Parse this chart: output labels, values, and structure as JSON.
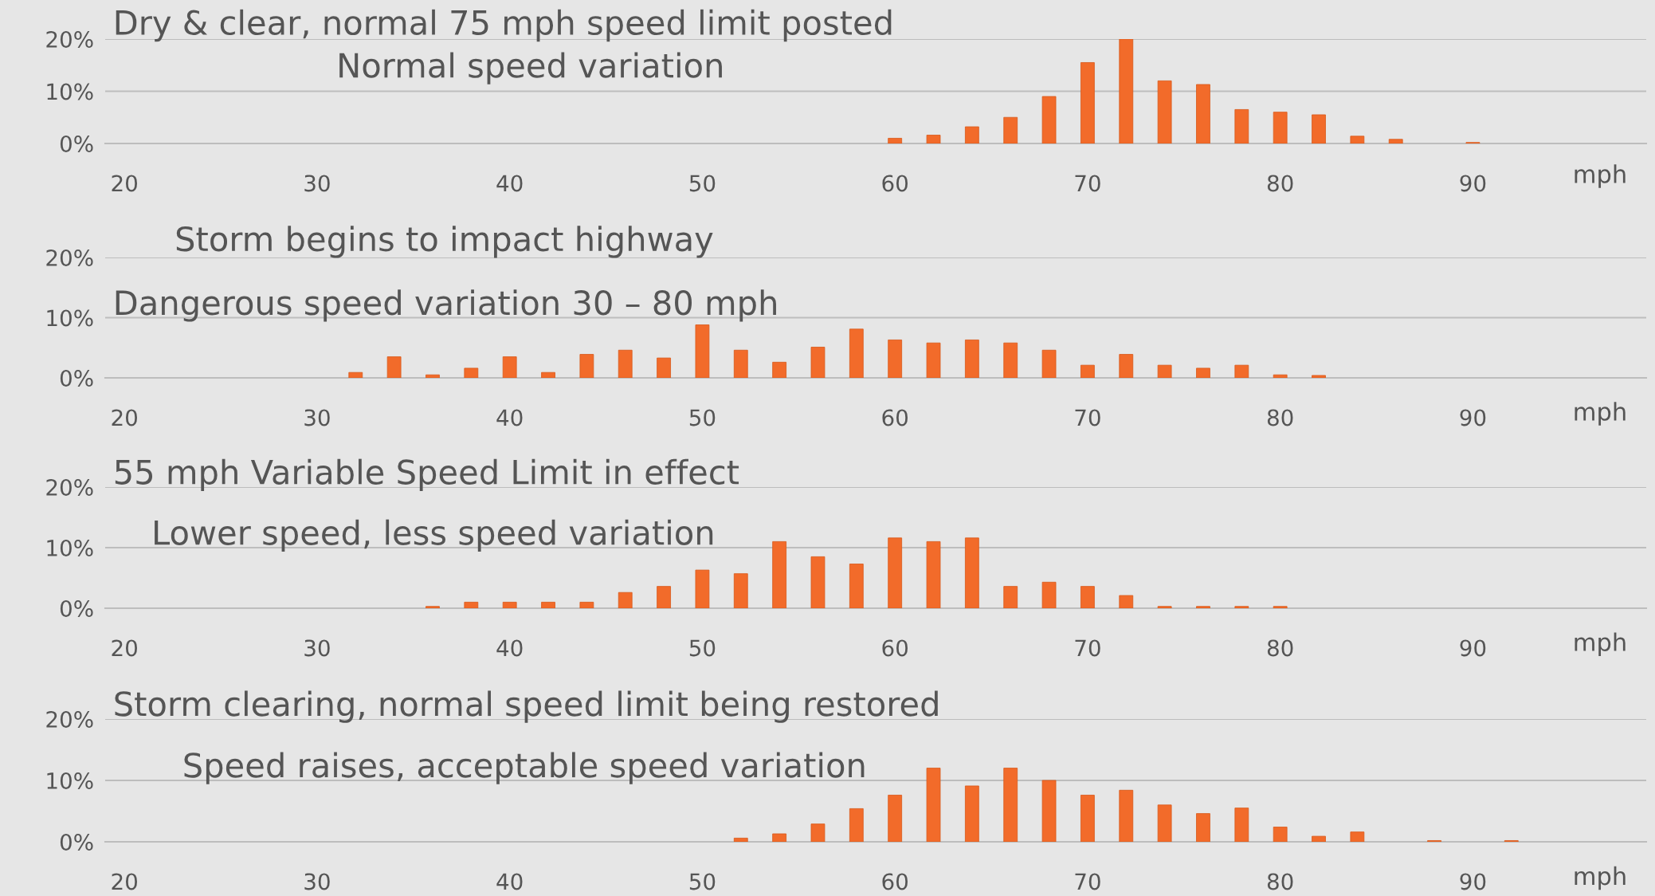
{
  "chart_data": [
    {
      "type": "bar",
      "title": "Dry & clear, normal 75 mph speed limit posted",
      "subtitle": "Normal speed variation",
      "xlabel": "mph",
      "x": [
        60,
        62,
        64,
        66,
        68,
        70,
        72,
        74,
        76,
        78,
        80,
        82,
        84,
        86,
        90
      ],
      "values": [
        1,
        1.6,
        3.2,
        5,
        9,
        15.5,
        20,
        12,
        11.3,
        6.5,
        6,
        5.5,
        1.4,
        0.8,
        0.2
      ],
      "color": "#f26b2a",
      "xlim": [
        19,
        99
      ],
      "xticks": [
        20,
        30,
        40,
        50,
        60,
        70,
        80,
        90
      ],
      "ylim": [
        0,
        20
      ],
      "yticks": [
        {
          "value": 0,
          "label": "0%"
        },
        {
          "value": 10,
          "label": "10%"
        },
        {
          "value": 20,
          "label": "20%"
        }
      ],
      "grid": "y"
    },
    {
      "type": "bar",
      "title": "Storm begins to impact highway",
      "subtitle": "Dangerous speed variation 30 – 80 mph",
      "xlabel": "mph",
      "x": [
        32,
        34,
        36,
        38,
        40,
        42,
        44,
        46,
        48,
        50,
        52,
        54,
        56,
        58,
        60,
        62,
        64,
        66,
        68,
        70,
        72,
        74,
        76,
        78,
        80,
        82
      ],
      "values": [
        0.9,
        3.5,
        0.5,
        1.6,
        3.5,
        0.9,
        3.9,
        4.6,
        3.3,
        8.8,
        4.6,
        2.6,
        5.1,
        8.1,
        6.3,
        5.8,
        6.3,
        5.8,
        4.6,
        2.1,
        3.9,
        2.1,
        1.6,
        2.1,
        0.5,
        0.4
      ],
      "color": "#f26b2a",
      "xlim": [
        19,
        99
      ],
      "xticks": [
        20,
        30,
        40,
        50,
        60,
        70,
        80,
        90
      ],
      "ylim": [
        0,
        20
      ],
      "yticks": [
        {
          "value": 0,
          "label": "0%"
        },
        {
          "value": 10,
          "label": "10%"
        },
        {
          "value": 20,
          "label": "20%"
        }
      ],
      "grid": "y"
    },
    {
      "type": "bar",
      "title": "55 mph Variable Speed Limit in effect",
      "subtitle": "Lower speed, less speed variation",
      "xlabel": "mph",
      "x": [
        36,
        38,
        40,
        42,
        44,
        46,
        48,
        50,
        52,
        54,
        56,
        58,
        60,
        62,
        64,
        66,
        68,
        70,
        72,
        74,
        76,
        78,
        80
      ],
      "values": [
        0.3,
        1,
        1,
        1,
        1,
        2.6,
        3.6,
        6.3,
        5.7,
        11,
        8.5,
        7.3,
        11.6,
        11,
        11.6,
        3.6,
        4.3,
        3.6,
        2.1,
        0.3,
        0.3,
        0.3,
        0.3
      ],
      "color": "#f26b2a",
      "xlim": [
        19,
        99
      ],
      "xticks": [
        20,
        30,
        40,
        50,
        60,
        70,
        80,
        90
      ],
      "ylim": [
        0,
        20
      ],
      "yticks": [
        {
          "value": 0,
          "label": "0%"
        },
        {
          "value": 10,
          "label": "10%"
        },
        {
          "value": 20,
          "label": "20%"
        }
      ],
      "grid": "y"
    },
    {
      "type": "bar",
      "title": "Storm clearing, normal speed limit being restored",
      "subtitle": "Speed raises, acceptable speed variation",
      "xlabel": "mph",
      "x": [
        52,
        54,
        56,
        58,
        60,
        62,
        64,
        66,
        68,
        70,
        72,
        74,
        76,
        78,
        80,
        82,
        84,
        88,
        92
      ],
      "values": [
        0.6,
        1.3,
        2.9,
        5.4,
        7.6,
        12,
        9.1,
        12,
        10,
        7.6,
        8.4,
        6,
        4.6,
        5.5,
        2.4,
        0.9,
        1.6,
        0.2,
        0.2
      ],
      "color": "#f26b2a",
      "xlim": [
        19,
        99
      ],
      "xticks": [
        20,
        30,
        40,
        50,
        60,
        70,
        80,
        90
      ],
      "ylim": [
        0,
        20
      ],
      "yticks": [
        {
          "value": 0,
          "label": "0%"
        },
        {
          "value": 10,
          "label": "10%"
        },
        {
          "value": 20,
          "label": "20%"
        }
      ],
      "grid": "y"
    }
  ]
}
